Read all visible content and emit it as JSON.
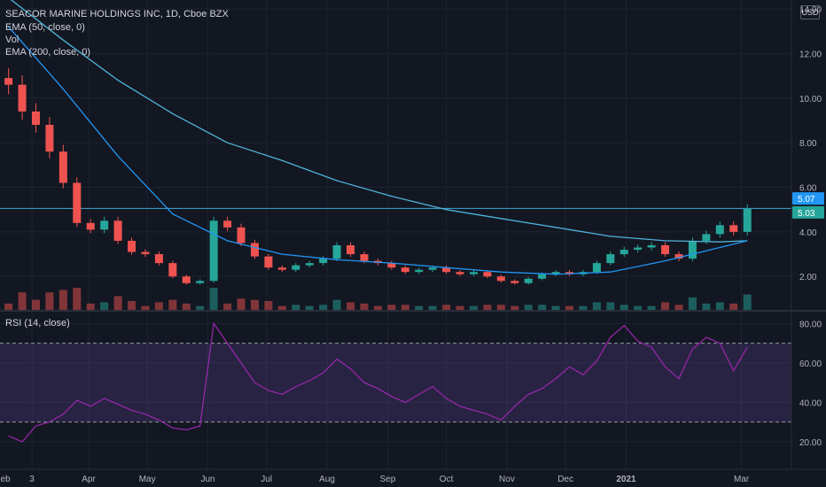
{
  "header": {
    "symbol_title": "SEACOR MARINE HOLDINGS INC, 1D, Cboe BZX",
    "ema50_label": "EMA (50, close, 0)",
    "vol_label": "Vol",
    "ema200_label": "EMA (200, close, 0)",
    "rsi_label": "RSI (14, close)",
    "currency_button": "USD"
  },
  "colors": {
    "background": "#131722",
    "grid": "#1f2330",
    "up": "#26a69a",
    "down": "#ef5350",
    "ema50": "#2196f3",
    "ema200": "#4fb3d9",
    "rsi_line": "#9c27b0",
    "rsi_band": "#7e57c2",
    "axis_text": "#b2b5be"
  },
  "chart_data": [
    {
      "type": "candlestick",
      "title": "SEACOR MARINE HOLDINGS INC, 1D, Cboe BZX",
      "x_tick_labels": [
        "eb",
        "3",
        "Apr",
        "May",
        "Jun",
        "Jul",
        "Aug",
        "Sep",
        "Oct",
        "Nov",
        "Dec",
        "2021",
        "Mar"
      ],
      "y_tick_labels": [
        "14.00",
        "12.00",
        "10.00",
        "8.00",
        "6.00",
        "4.00",
        "2.00"
      ],
      "ylim": [
        0.5,
        14.4
      ],
      "price_labels": {
        "upper": "5.07",
        "last": "5.03"
      },
      "horizontal_line": 5.05,
      "series": [
        {
          "name": "Price (close)",
          "x": [
            "2020-02-20",
            "2020-02-27",
            "2020-03-05",
            "2020-03-12",
            "2020-03-19",
            "2020-03-26",
            "2020-04-02",
            "2020-04-09",
            "2020-04-16",
            "2020-04-23",
            "2020-04-30",
            "2020-05-07",
            "2020-05-14",
            "2020-05-21",
            "2020-05-28",
            "2020-06-04",
            "2020-06-11",
            "2020-06-18",
            "2020-06-25",
            "2020-07-02",
            "2020-07-09",
            "2020-07-16",
            "2020-07-23",
            "2020-07-30",
            "2020-08-06",
            "2020-08-13",
            "2020-08-20",
            "2020-08-27",
            "2020-09-03",
            "2020-09-10",
            "2020-09-17",
            "2020-09-24",
            "2020-10-01",
            "2020-10-08",
            "2020-10-15",
            "2020-10-22",
            "2020-10-29",
            "2020-11-05",
            "2020-11-12",
            "2020-11-19",
            "2020-11-26",
            "2020-12-03",
            "2020-12-10",
            "2020-12-17",
            "2020-12-24",
            "2020-12-31",
            "2021-01-07",
            "2021-01-14",
            "2021-01-21",
            "2021-01-28",
            "2021-02-04",
            "2021-02-11",
            "2021-02-18",
            "2021-02-25",
            "2021-03-04"
          ],
          "values": [
            10.6,
            9.4,
            8.8,
            7.6,
            6.2,
            4.4,
            4.1,
            4.5,
            3.6,
            3.1,
            3.0,
            2.6,
            2.0,
            1.7,
            1.8,
            4.5,
            4.2,
            3.5,
            2.9,
            2.4,
            2.3,
            2.5,
            2.6,
            2.8,
            3.4,
            3.0,
            2.7,
            2.6,
            2.4,
            2.2,
            2.3,
            2.4,
            2.2,
            2.1,
            2.2,
            2.0,
            1.8,
            1.7,
            1.9,
            2.1,
            2.2,
            2.1,
            2.2,
            2.6,
            3.0,
            3.2,
            3.3,
            3.4,
            3.0,
            2.8,
            3.6,
            3.9,
            4.3,
            4.0,
            5.03
          ]
        },
        {
          "name": "EMA (50, close, 0)",
          "x": [
            "2020-02-20",
            "2020-03-19",
            "2020-04-16",
            "2020-05-14",
            "2020-06-11",
            "2020-07-09",
            "2020-08-06",
            "2020-09-03",
            "2020-10-01",
            "2020-10-29",
            "2020-11-26",
            "2020-12-24",
            "2021-01-21",
            "2021-02-18",
            "2021-03-04"
          ],
          "values": [
            13.2,
            10.4,
            7.4,
            4.8,
            3.6,
            3.0,
            2.75,
            2.6,
            2.4,
            2.2,
            2.1,
            2.2,
            2.7,
            3.3,
            3.6
          ]
        },
        {
          "name": "EMA (200, close, 0)",
          "x": [
            "2020-02-20",
            "2020-03-19",
            "2020-04-16",
            "2020-05-14",
            "2020-06-11",
            "2020-07-09",
            "2020-08-06",
            "2020-09-03",
            "2020-10-01",
            "2020-10-29",
            "2020-11-26",
            "2020-12-24",
            "2021-01-21",
            "2021-02-18",
            "2021-03-04"
          ],
          "values": [
            14.5,
            12.6,
            10.8,
            9.3,
            8.0,
            7.2,
            6.3,
            5.6,
            5.0,
            4.6,
            4.2,
            3.8,
            3.6,
            3.55,
            3.6
          ]
        }
      ]
    },
    {
      "type": "line",
      "title": "RSI (14, close)",
      "y_tick_labels": [
        "80.00",
        "60.00",
        "40.00",
        "20.00"
      ],
      "ylim": [
        6,
        86
      ],
      "overbought": 70,
      "oversold": 30,
      "series": [
        {
          "name": "RSI (14, close)",
          "x": [
            "2020-02-20",
            "2020-02-27",
            "2020-03-05",
            "2020-03-12",
            "2020-03-19",
            "2020-03-26",
            "2020-04-02",
            "2020-04-09",
            "2020-04-16",
            "2020-04-23",
            "2020-04-30",
            "2020-05-07",
            "2020-05-14",
            "2020-05-21",
            "2020-05-28",
            "2020-06-04",
            "2020-06-11",
            "2020-06-18",
            "2020-06-25",
            "2020-07-02",
            "2020-07-09",
            "2020-07-16",
            "2020-07-23",
            "2020-07-30",
            "2020-08-06",
            "2020-08-13",
            "2020-08-20",
            "2020-08-27",
            "2020-09-03",
            "2020-09-10",
            "2020-09-17",
            "2020-09-24",
            "2020-10-01",
            "2020-10-08",
            "2020-10-15",
            "2020-10-22",
            "2020-10-29",
            "2020-11-05",
            "2020-11-12",
            "2020-11-19",
            "2020-11-26",
            "2020-12-03",
            "2020-12-10",
            "2020-12-17",
            "2020-12-24",
            "2020-12-31",
            "2021-01-07",
            "2021-01-14",
            "2021-01-21",
            "2021-01-28",
            "2021-02-04",
            "2021-02-11",
            "2021-02-18",
            "2021-02-25",
            "2021-03-04"
          ],
          "values": [
            23,
            20,
            28,
            30,
            34,
            41,
            38,
            42,
            39,
            36,
            34,
            31,
            27,
            26,
            28,
            80,
            70,
            60,
            50,
            46,
            44,
            48,
            51,
            55,
            62,
            57,
            50,
            47,
            43,
            40,
            44,
            48,
            42,
            38,
            36,
            34,
            31,
            38,
            44,
            47,
            52,
            58,
            54,
            61,
            73,
            79,
            71,
            68,
            58,
            52,
            67,
            73,
            70,
            56,
            68
          ]
        }
      ]
    }
  ]
}
